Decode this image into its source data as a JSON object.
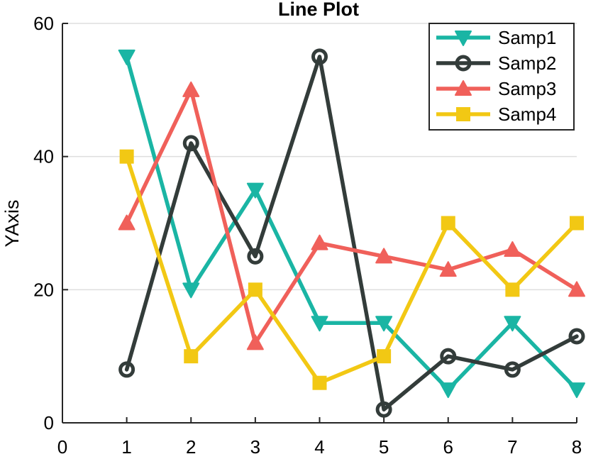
{
  "chart_data": {
    "type": "line",
    "title": "Line Plot",
    "xlabel": "",
    "ylabel": "YAxis",
    "xlim": [
      0,
      8
    ],
    "ylim": [
      0,
      60
    ],
    "xticks": [
      0,
      1,
      2,
      3,
      4,
      5,
      6,
      7,
      8
    ],
    "yticks": [
      0,
      20,
      40,
      60
    ],
    "grid": "horizontal",
    "legend_position": "top-right",
    "x": [
      1,
      2,
      3,
      4,
      5,
      6,
      7,
      8
    ],
    "series": [
      {
        "name": "Samp1",
        "color": "#1ab5a4",
        "marker": "triangle-down",
        "values": [
          55,
          20,
          35,
          15,
          15,
          5,
          15,
          5
        ]
      },
      {
        "name": "Samp2",
        "color": "#333c3a",
        "marker": "circle",
        "values": [
          8,
          42,
          25,
          55,
          2,
          10,
          8,
          13
        ]
      },
      {
        "name": "Samp3",
        "color": "#f0605a",
        "marker": "triangle-up",
        "values": [
          30,
          50,
          12,
          27,
          25,
          23,
          26,
          20
        ]
      },
      {
        "name": "Samp4",
        "color": "#f2c814",
        "marker": "square",
        "values": [
          40,
          10,
          20,
          6,
          10,
          30,
          20,
          30
        ]
      }
    ]
  }
}
